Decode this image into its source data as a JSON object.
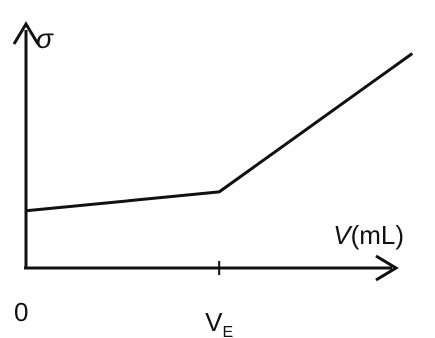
{
  "chart_data": {
    "type": "line",
    "title": "",
    "ylabel": "σ",
    "xlabel_italic": "V",
    "xlabel_unit": "(mL)",
    "origin_label": "0",
    "x_tick": {
      "main": "V",
      "sub": "E",
      "value": 1
    },
    "x": [
      0,
      1,
      2
    ],
    "series": [
      {
        "values": [
          1,
          1.33,
          3.75
        ]
      }
    ],
    "xlim": [
      0,
      2.05
    ],
    "ylim": [
      0,
      4.3
    ],
    "grid": false,
    "color": "#111111"
  }
}
